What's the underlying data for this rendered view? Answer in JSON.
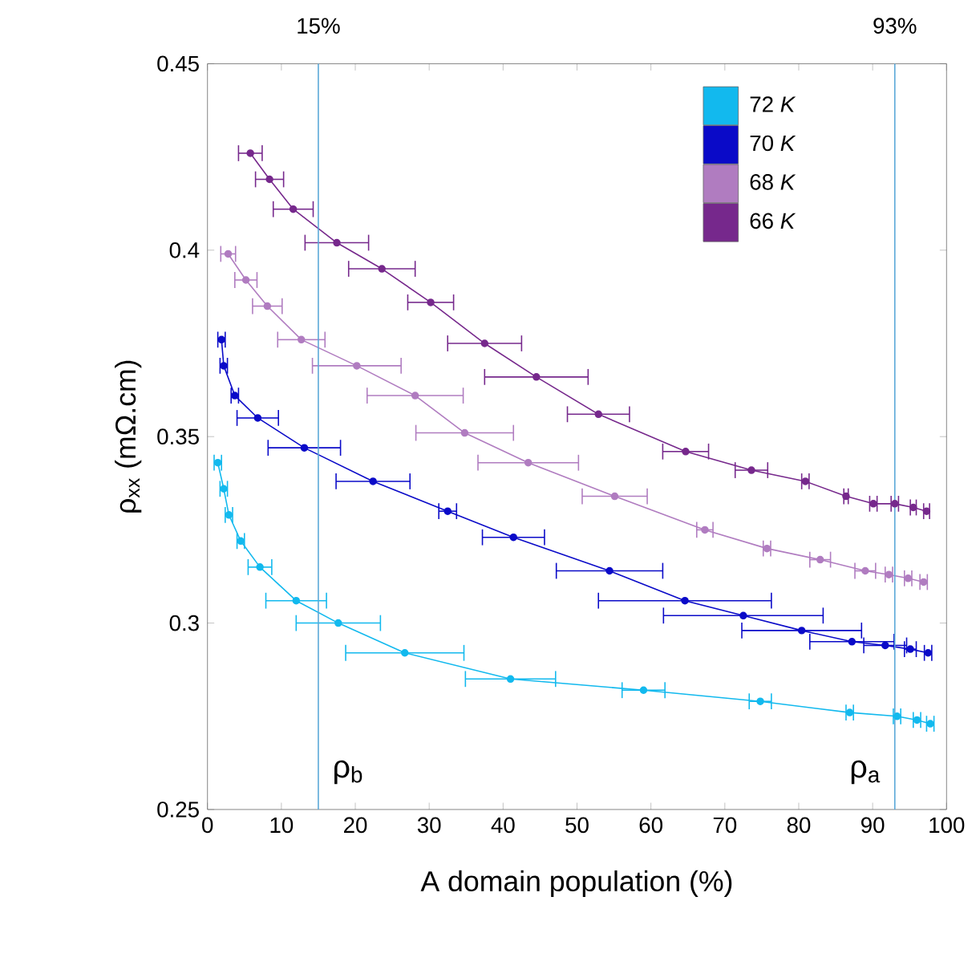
{
  "chart_data": {
    "type": "line",
    "xlabel": "A domain population (%)",
    "ylabel": "ρ$_{xx}$ (mΩ.cm)",
    "xlim": [
      0,
      100
    ],
    "xticks": [
      0,
      10,
      20,
      30,
      40,
      50,
      60,
      70,
      80,
      90,
      100
    ],
    "ylim": [
      0.25,
      0.45
    ],
    "yticks": [
      0.25,
      0.3,
      0.35,
      0.4,
      0.45
    ],
    "grid": false,
    "legend": "top right",
    "marker": "circle",
    "line_style": "solid",
    "series": [
      {
        "name": "72 *K*",
        "color": "#12b9ee",
        "x": [
          1.4,
          2.2,
          2.9,
          4.5,
          7.1,
          12.0,
          17.7,
          26.7,
          41.0,
          59.0,
          74.8,
          86.9,
          93.3,
          96.0,
          97.8
        ],
        "values": [
          0.343,
          0.336,
          0.329,
          0.322,
          0.315,
          0.306,
          0.3,
          0.292,
          0.285,
          0.282,
          0.279,
          0.276,
          0.275,
          0.274,
          0.273
        ],
        "xerrors": [
          0.5,
          0.5,
          0.5,
          0.5,
          1.6,
          4.1,
          5.7,
          8.0,
          6.1,
          2.9,
          1.5,
          0.5,
          0.5,
          0.5,
          0.5
        ]
      },
      {
        "name": "70 *K*",
        "color": "#0a0ac8",
        "x": [
          1.9,
          2.2,
          3.7,
          6.8,
          13.1,
          22.4,
          32.5,
          41.4,
          54.4,
          64.6,
          72.5,
          80.4,
          87.2,
          91.7,
          95.1,
          97.5
        ],
        "values": [
          0.376,
          0.369,
          0.361,
          0.355,
          0.347,
          0.338,
          0.33,
          0.323,
          0.314,
          0.306,
          0.302,
          0.298,
          0.295,
          0.294,
          0.293,
          0.292
        ],
        "xerrors": [
          0.5,
          0.5,
          0.5,
          2.8,
          4.9,
          5.0,
          1.2,
          4.2,
          7.2,
          11.7,
          10.8,
          8.1,
          5.7,
          2.9,
          0.8,
          0.5
        ]
      },
      {
        "name": "68 *K*",
        "color": "#b07cc0",
        "x": [
          2.8,
          5.2,
          8.1,
          12.7,
          20.2,
          28.1,
          34.8,
          43.4,
          55.1,
          67.3,
          75.7,
          82.9,
          89.0,
          92.2,
          94.8,
          96.9
        ],
        "values": [
          0.399,
          0.392,
          0.385,
          0.376,
          0.369,
          0.361,
          0.351,
          0.343,
          0.334,
          0.325,
          0.32,
          0.317,
          0.314,
          0.313,
          0.312,
          0.311
        ],
        "xerrors": [
          1.0,
          1.5,
          2.0,
          3.2,
          6.0,
          6.5,
          6.6,
          6.8,
          4.4,
          1.1,
          0.5,
          1.4,
          1.4,
          0.5,
          0.5,
          0.5
        ]
      },
      {
        "name": "66 *K*",
        "color": "#76288c",
        "x": [
          5.8,
          8.4,
          11.6,
          17.5,
          23.6,
          30.2,
          37.5,
          44.5,
          52.9,
          64.7,
          73.6,
          80.9,
          86.4,
          90.1,
          93.0,
          95.5,
          97.3
        ],
        "values": [
          0.426,
          0.419,
          0.411,
          0.402,
          0.395,
          0.386,
          0.375,
          0.366,
          0.356,
          0.346,
          0.341,
          0.338,
          0.334,
          0.332,
          0.332,
          0.331,
          0.33
        ],
        "xerrors": [
          1.6,
          1.9,
          2.7,
          4.3,
          4.5,
          3.1,
          5.0,
          7.0,
          4.2,
          3.1,
          2.2,
          0.5,
          0.3,
          0.5,
          0.5,
          0.4,
          0.4
        ]
      }
    ],
    "ref_lines": [
      {
        "axis": "x",
        "value": 15,
        "label": "15%",
        "color": "#5aa8d8"
      },
      {
        "axis": "x",
        "value": 93,
        "label": "93%",
        "color": "#5aa8d8"
      }
    ],
    "annotations": [
      {
        "text": "ρ$_{b}$",
        "x": 15,
        "y": 0.26
      },
      {
        "text": "ρ$_{a}$",
        "x": 93,
        "y": 0.26
      }
    ]
  }
}
